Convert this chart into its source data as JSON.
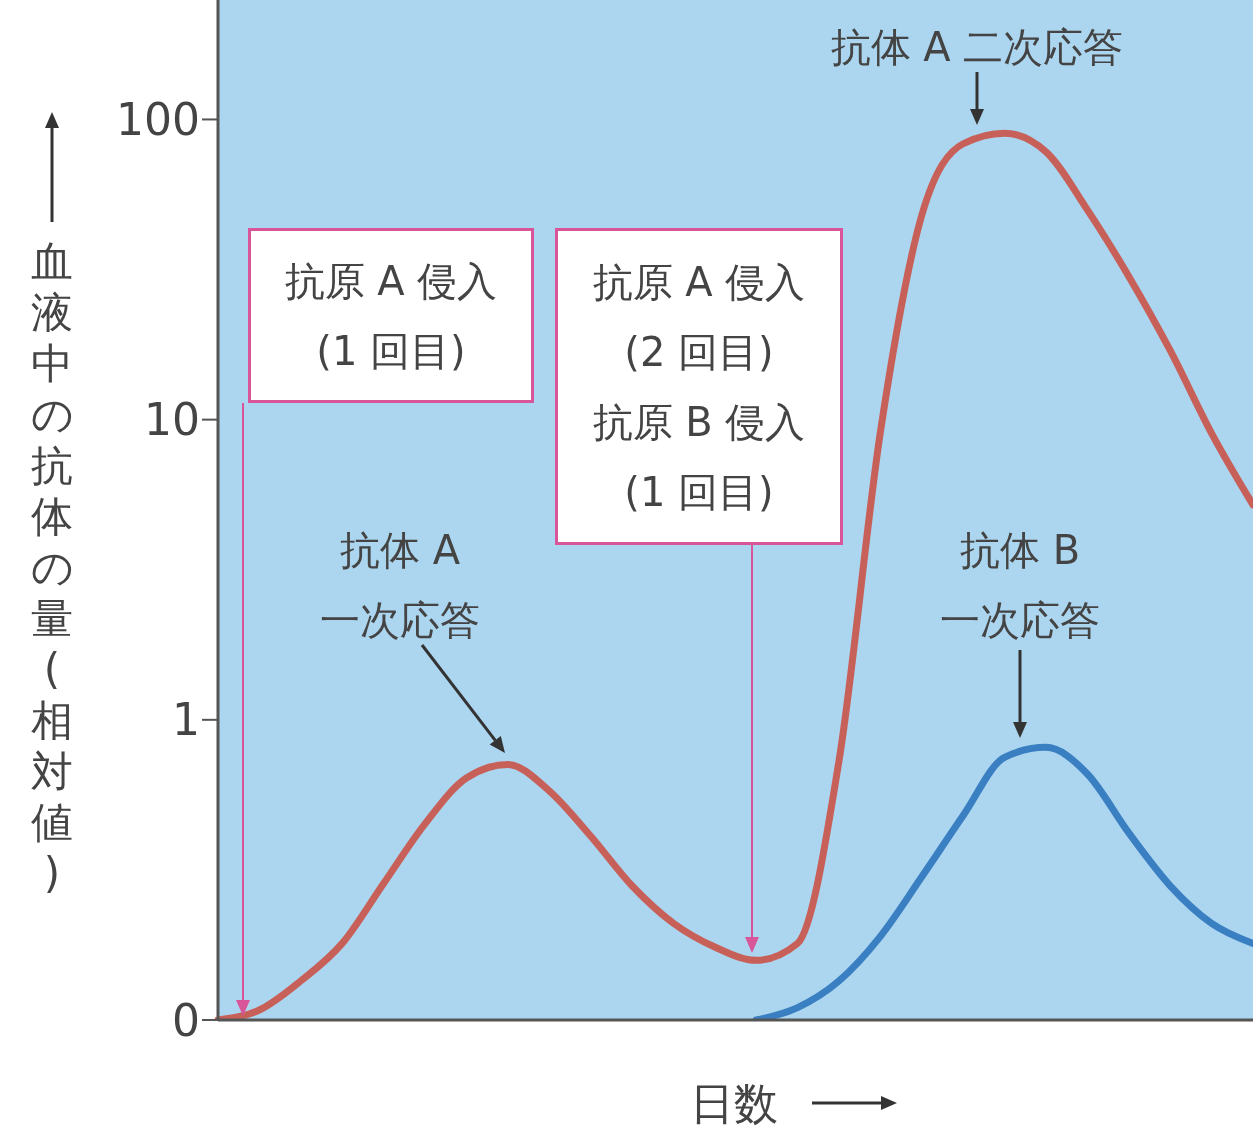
{
  "chart_data": {
    "type": "line",
    "xlabel": "日数",
    "ylabel": "血液中の抗体の量(相対値)",
    "categories": [
      null,
      null,
      null,
      null,
      null,
      null,
      null,
      null,
      null,
      null,
      null,
      null,
      null,
      null,
      null,
      null,
      null,
      null,
      null,
      null,
      null,
      null,
      null,
      null,
      null,
      null
    ],
    "series": [
      {
        "color": "#c8605a",
        "values": [
          0.1,
          0.108,
          0.135,
          0.18,
          0.285,
          0.45,
          0.64,
          0.71,
          0.58,
          0.41,
          0.28,
          0.21,
          0.175,
          0.158,
          0.18,
          0.73,
          9.1,
          48,
          83,
          90,
          78,
          50,
          30,
          17,
          9,
          5.2
        ]
      },
      {
        "color": "#3a7fc1",
        "values": [
          null,
          null,
          null,
          null,
          null,
          null,
          null,
          null,
          null,
          null,
          null,
          null,
          null,
          0.1,
          0.11,
          0.135,
          0.19,
          0.3,
          0.48,
          0.75,
          0.81,
          0.66,
          0.42,
          0.28,
          0.21,
          0.18
        ]
      }
    ],
    "log": true,
    "ylim": [
      0.1,
      250
    ],
    "yticks": [
      {
        "value": 0.1,
        "label": "0"
      },
      1,
      10,
      100
    ],
    "tick_labels": "y",
    "marker": "none",
    "line_style": "solid",
    "annotations": [
      "抗原 A 侵入\n(1 回目)",
      "抗原 A 侵入\n(2 回目)\n抗原 B 侵入\n(1 回目)",
      "抗体 A\n一次応答",
      "抗体 A 二次応答",
      "抗体 B\n一次応答"
    ]
  }
}
